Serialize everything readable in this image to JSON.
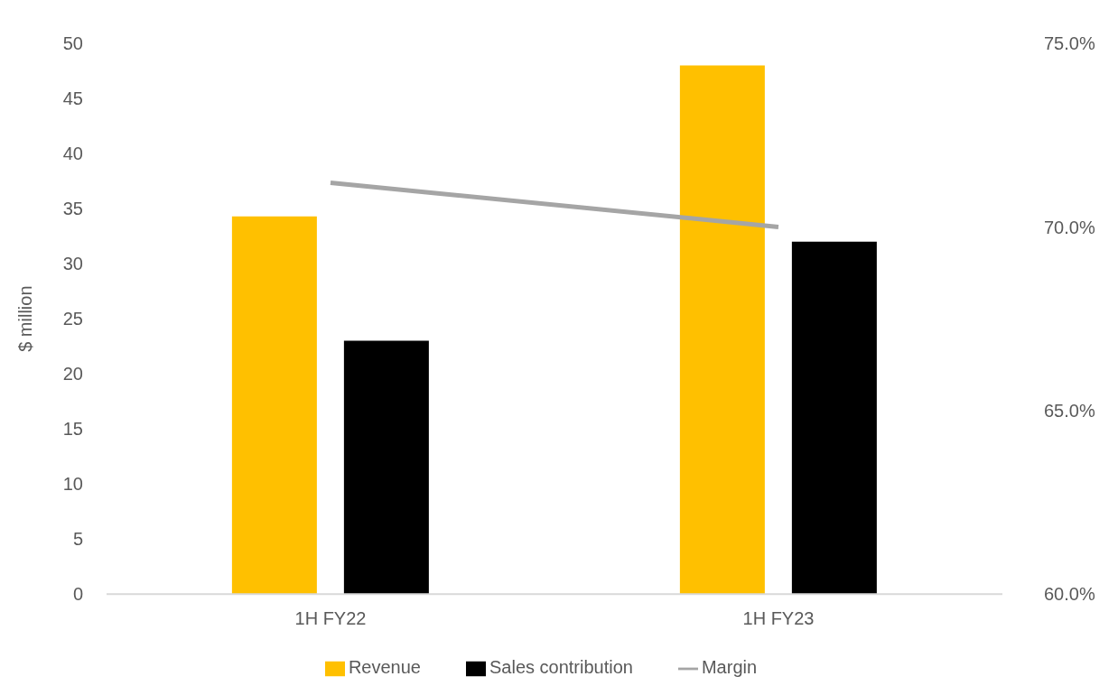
{
  "chart_data": {
    "type": "bar",
    "ylabel": "$ million",
    "categories": [
      "1H FY22",
      "1H FY23"
    ],
    "series": [
      {
        "name": "Revenue",
        "color": "#ffc000",
        "values": [
          34.3,
          48.0
        ]
      },
      {
        "name": "Sales contribution",
        "color": "#000000",
        "values": [
          23.0,
          32.0
        ]
      },
      {
        "name": "Margin",
        "type": "line",
        "axis": "y2",
        "color": "#a5a5a5",
        "values": [
          71.2,
          70.0
        ]
      }
    ],
    "ylim": [
      0,
      50
    ],
    "yticks": [
      0,
      5,
      10,
      15,
      20,
      25,
      30,
      35,
      40,
      45,
      50
    ],
    "y2lim": [
      60,
      75
    ],
    "y2ticks": [
      {
        "value": 60,
        "label": "60.0%"
      },
      {
        "value": 65,
        "label": "65.0%"
      },
      {
        "value": 70,
        "label": "70.0%"
      },
      {
        "value": 75,
        "label": "75.0%"
      }
    ],
    "grid": false,
    "legend": "bottom",
    "marker": "none",
    "line_style": "solid"
  }
}
